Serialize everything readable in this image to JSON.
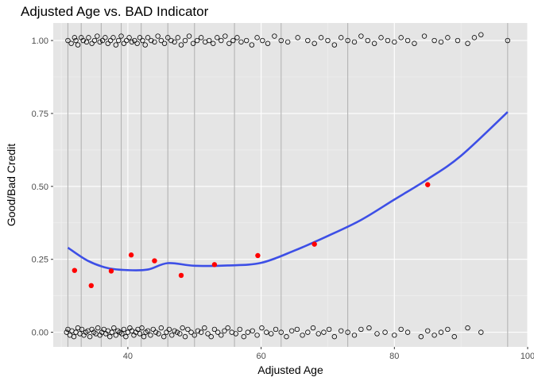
{
  "chart_data": {
    "type": "scatter",
    "title": "Adjusted Age vs. BAD Indicator",
    "xlabel": "Adjusted Age",
    "ylabel": "Good/Bad Credit",
    "xlim": [
      28.8,
      100.0
    ],
    "ylim": [
      -0.05,
      1.06
    ],
    "x_ticks": [
      40,
      60,
      80,
      100
    ],
    "y_ticks": [
      0.0,
      0.25,
      0.5,
      0.75,
      1.0
    ],
    "y_tick_labels": [
      "0.00",
      "0.25",
      "0.50",
      "0.75",
      "1.00"
    ],
    "grid": true,
    "legend": "none",
    "bin_breaks": [
      31,
      33,
      36,
      39,
      42,
      46,
      50,
      56,
      63,
      73,
      97
    ],
    "bin_means": {
      "x": [
        32,
        34.5,
        37.5,
        40.5,
        44,
        48,
        53,
        59.5,
        68,
        85
      ],
      "y": [
        0.212,
        0.16,
        0.21,
        0.265,
        0.245,
        0.195,
        0.232,
        0.263,
        0.302,
        0.506
      ]
    },
    "smooth_curve": {
      "x": [
        31,
        34,
        37,
        40,
        43,
        46,
        50,
        55,
        60,
        65,
        70,
        75,
        80,
        85,
        90,
        97
      ],
      "y": [
        0.29,
        0.245,
        0.22,
        0.213,
        0.215,
        0.237,
        0.228,
        0.229,
        0.238,
        0.28,
        0.33,
        0.385,
        0.455,
        0.525,
        0.605,
        0.755
      ]
    },
    "jitter_points": {
      "ones": {
        "x": [
          31,
          31.5,
          32,
          32.2,
          32.5,
          33,
          33.3,
          33.8,
          34.1,
          34.6,
          35,
          35.4,
          35.8,
          36.2,
          36.6,
          37,
          37.4,
          37.8,
          38.2,
          38.6,
          39,
          39.4,
          39.8,
          40.2,
          40.6,
          41,
          41.4,
          41.8,
          42.2,
          42.6,
          43,
          43.5,
          44,
          44.5,
          45,
          45.5,
          46,
          46.5,
          47,
          47.5,
          48,
          48.6,
          49.2,
          49.8,
          50.4,
          51,
          51.6,
          52.2,
          52.8,
          53.4,
          54,
          54.6,
          55.2,
          55.8,
          56.4,
          57,
          57.8,
          58.6,
          59.4,
          60.2,
          61,
          62,
          63,
          64,
          65.5,
          67,
          68,
          69,
          70,
          71,
          72,
          73,
          74,
          75,
          76,
          77,
          78,
          79,
          80,
          81,
          82,
          83,
          84.5,
          86,
          87,
          88,
          89.5,
          91,
          92,
          93,
          97
        ],
        "y": [
          1.0,
          0.99,
          1.01,
          1.0,
          0.985,
          1.01,
          1.0,
          0.995,
          1.01,
          0.99,
          1.0,
          1.015,
          0.995,
          1.0,
          1.01,
          0.99,
          1.0,
          1.01,
          0.985,
          1.0,
          1.015,
          0.99,
          1.0,
          1.01,
          0.995,
          1.0,
          0.99,
          1.01,
          1.0,
          0.985,
          1.01,
          1.0,
          0.995,
          1.015,
          1.0,
          0.99,
          1.01,
          1.0,
          0.995,
          1.01,
          0.985,
          1.0,
          1.015,
          0.99,
          1.0,
          1.01,
          0.995,
          1.0,
          0.99,
          1.01,
          1.0,
          1.015,
          0.99,
          1.0,
          1.01,
          0.995,
          1.0,
          0.985,
          1.01,
          1.0,
          0.99,
          1.015,
          1.0,
          0.995,
          1.01,
          1.0,
          0.99,
          1.01,
          1.0,
          0.985,
          1.01,
          1.0,
          0.995,
          1.015,
          1.0,
          0.99,
          1.01,
          1.0,
          0.995,
          1.01,
          1.0,
          0.99,
          1.015,
          1.0,
          0.995,
          1.01,
          1.0,
          0.99,
          1.01,
          1.02,
          1.0
        ]
      },
      "zeros": {
        "x": [
          30.8,
          31,
          31.3,
          31.6,
          31.9,
          32.2,
          32.5,
          32.8,
          33.1,
          33.4,
          33.7,
          34,
          34.3,
          34.6,
          34.9,
          35.2,
          35.5,
          35.8,
          36.1,
          36.4,
          36.7,
          37,
          37.3,
          37.6,
          37.9,
          38.2,
          38.5,
          38.8,
          39.1,
          39.4,
          39.7,
          40,
          40.3,
          40.6,
          40.9,
          41.2,
          41.5,
          41.8,
          42.1,
          42.4,
          42.7,
          43,
          43.4,
          43.8,
          44.2,
          44.6,
          45,
          45.4,
          45.8,
          46.2,
          46.6,
          47,
          47.4,
          47.8,
          48.2,
          48.6,
          49,
          49.5,
          50,
          50.5,
          51,
          51.5,
          52,
          52.5,
          53,
          53.5,
          54,
          54.5,
          55,
          55.6,
          56.2,
          56.8,
          57.4,
          58,
          58.7,
          59.4,
          60.1,
          60.8,
          61.5,
          62.2,
          63,
          63.8,
          64.6,
          65.4,
          66.2,
          67,
          67.8,
          68.6,
          69.4,
          70.2,
          71,
          72,
          73,
          74,
          75,
          76.2,
          77.4,
          78.6,
          80,
          81,
          82,
          84,
          85,
          86,
          87,
          88,
          89,
          91,
          93
        ],
        "y": [
          0.0,
          0.01,
          -0.01,
          0.005,
          -0.015,
          0.0,
          0.015,
          -0.005,
          0.01,
          -0.01,
          0.0,
          0.005,
          -0.015,
          0.01,
          0.0,
          -0.005,
          0.015,
          -0.01,
          0.0,
          0.01,
          -0.005,
          0.005,
          -0.015,
          0.0,
          0.015,
          -0.01,
          0.005,
          0.0,
          -0.005,
          0.01,
          -0.015,
          0.0,
          0.015,
          0.005,
          -0.01,
          0.0,
          0.01,
          -0.005,
          0.015,
          -0.015,
          0.0,
          0.005,
          -0.01,
          0.01,
          0.0,
          -0.005,
          0.015,
          -0.015,
          0.0,
          0.01,
          -0.01,
          0.005,
          0.0,
          -0.005,
          0.015,
          -0.015,
          0.01,
          0.0,
          -0.01,
          0.005,
          0.0,
          0.015,
          -0.005,
          -0.015,
          0.01,
          0.0,
          -0.01,
          0.005,
          0.015,
          0.0,
          -0.005,
          0.01,
          -0.015,
          0.0,
          0.005,
          -0.01,
          0.015,
          0.0,
          -0.005,
          0.01,
          0.0,
          -0.015,
          0.005,
          0.01,
          -0.01,
          0.0,
          0.015,
          -0.005,
          0.0,
          0.01,
          -0.015,
          0.005,
          0.0,
          -0.01,
          0.01,
          0.015,
          -0.005,
          0.0,
          -0.01,
          0.01,
          0.0,
          -0.015,
          0.005,
          -0.01,
          0.0,
          0.01,
          -0.015,
          0.015,
          0.0
        ]
      }
    },
    "colors": {
      "panel": "#e5e5e5",
      "grid_major": "#ffffff",
      "grid_minor": "#f2f2f2",
      "vline": "#b3b3b3",
      "smooth": "#3d4fe6",
      "bin_mean": "#ff0000",
      "point_stroke": "#000000",
      "tick": "#333333"
    }
  }
}
